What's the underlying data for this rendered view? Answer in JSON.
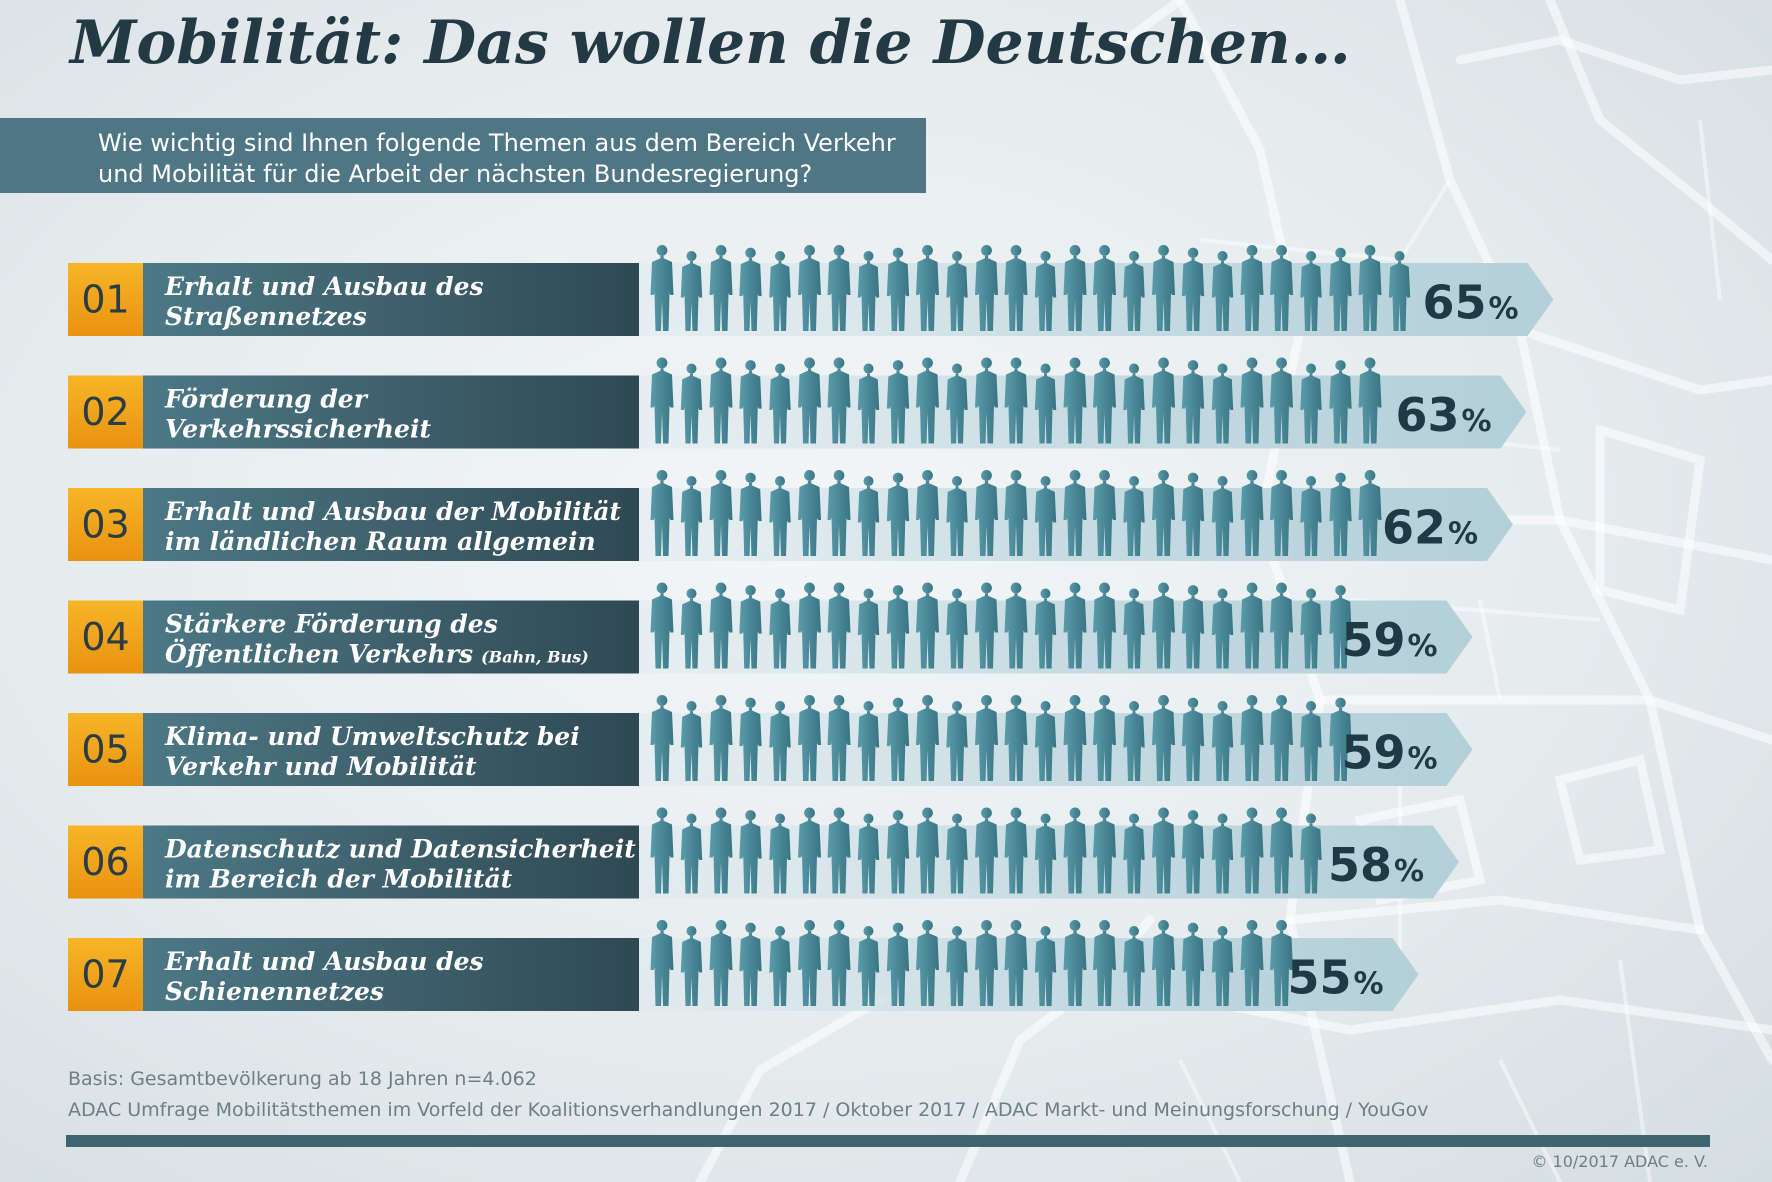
{
  "title": "Mobilität: Das wollen die Deutschen…",
  "question": {
    "line1": "Wie wichtig sind Ihnen folgende Themen aus dem Bereich Verkehr",
    "line2": "und Mobilität für die Arbeit der nächsten Bundesregierung?"
  },
  "chart_data": {
    "type": "bar",
    "orientation": "horizontal",
    "unit": "%",
    "categories": [
      "01",
      "02",
      "03",
      "04",
      "05",
      "06",
      "07"
    ],
    "labels": [
      [
        "Erhalt und Ausbau des",
        "Straßennetzes"
      ],
      [
        "Förderung der",
        "Verkehrssicherheit"
      ],
      [
        "Erhalt und Ausbau der Mobilität",
        "im ländlichen Raum allgemein"
      ],
      [
        "Stärkere Förderung des",
        "Öffentlichen Verkehrs",
        "(Bahn, Bus)"
      ],
      [
        "Klima- und Umweltschutz bei",
        "Verkehr und Mobilität"
      ],
      [
        "Datenschutz und Datensicherheit",
        "im Bereich der Mobilität"
      ],
      [
        "Erhalt und Ausbau des",
        "Schienennetzes"
      ]
    ],
    "values": [
      65,
      63,
      62,
      59,
      59,
      58,
      55
    ]
  },
  "footnotes": {
    "basis": "Basis: Gesamtbevölkerung ab 18 Jahren n=4.062",
    "source": "ADAC Umfrage Mobilitätsthemen im Vorfeld der Koalitionsverhandlungen 2017 / Oktober 2017 / ADAC Markt- und Meinungsforschung / YouGov"
  },
  "copyright": "© 10/2017 ADAC e. V.",
  "colors": {
    "rank_box": "#f4a81c",
    "label_box": "#3d5f6b",
    "people": "#4a8a99",
    "arrow": "#b9d2da",
    "title": "#233a44"
  }
}
